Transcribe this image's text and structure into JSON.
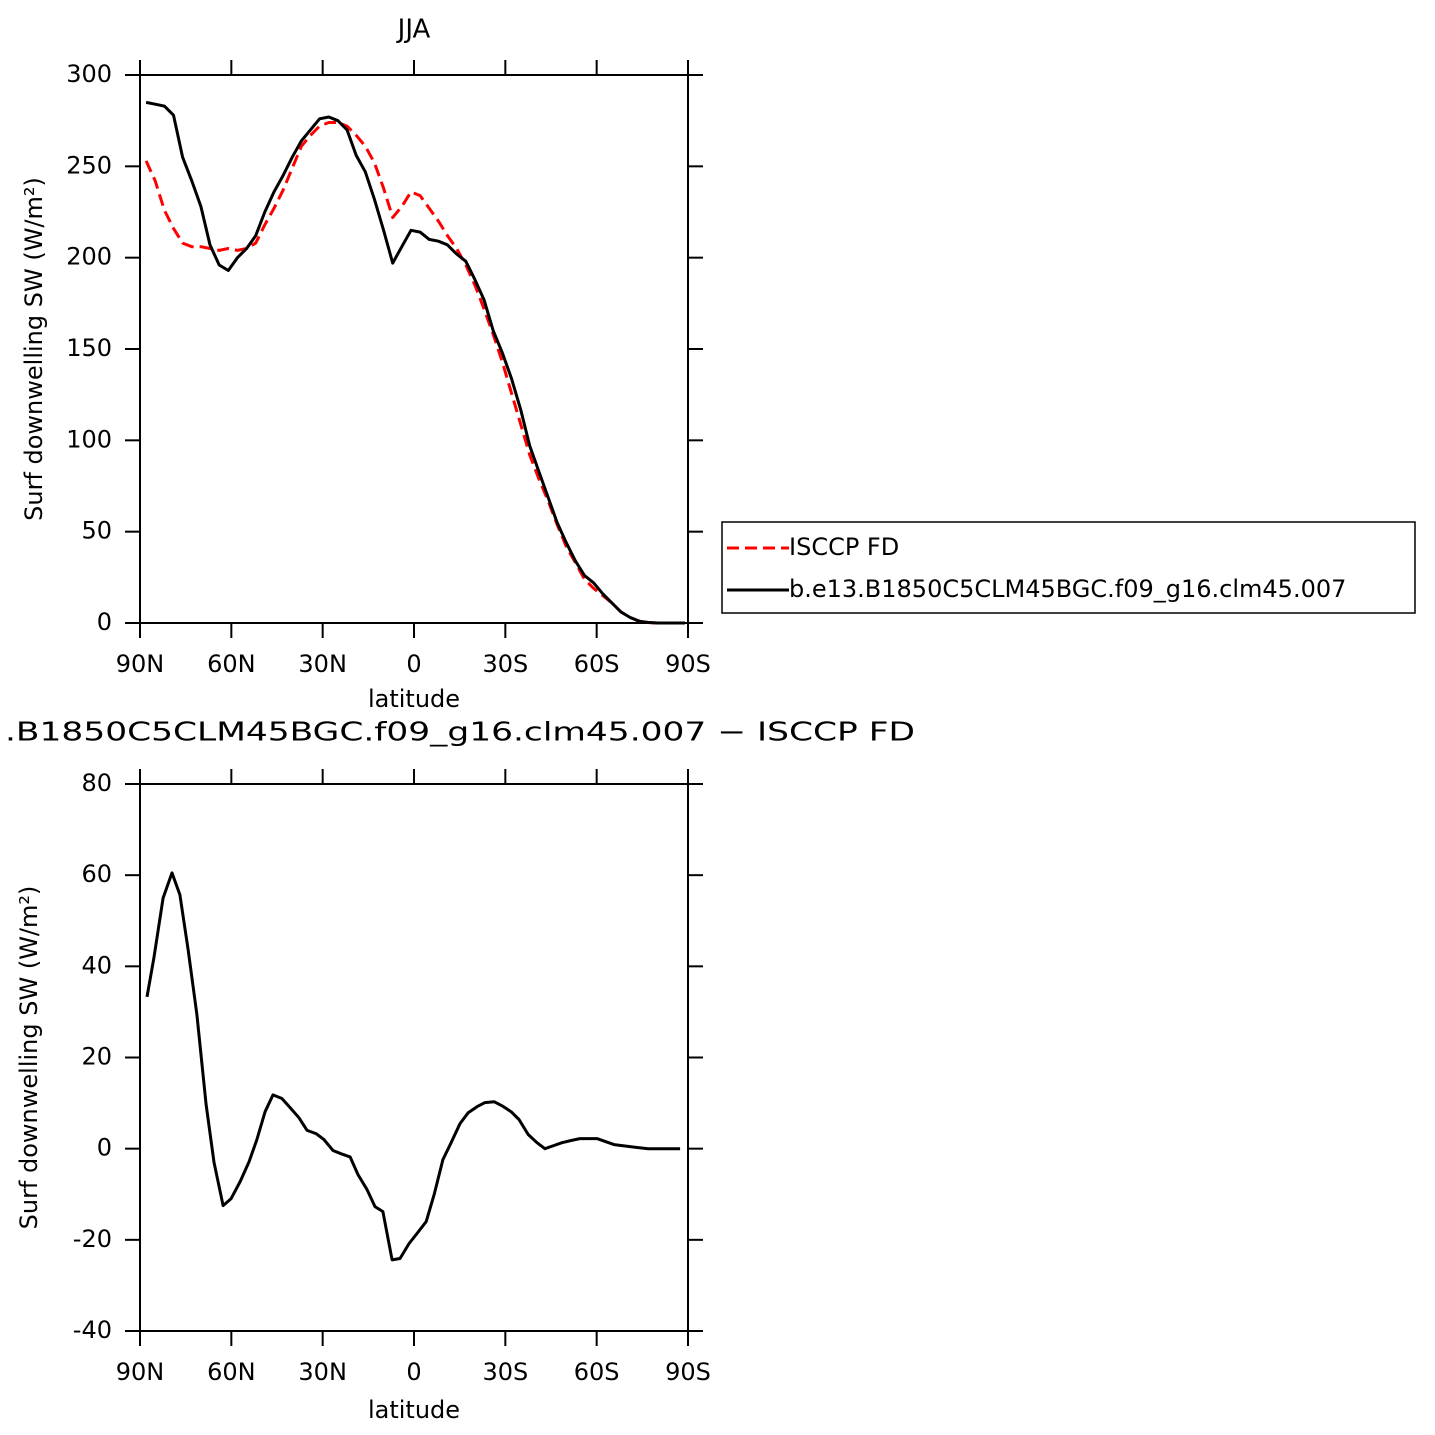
{
  "chart_data": [
    {
      "type": "line",
      "title": "JJA",
      "xlabel": "latitude",
      "ylabel": "Surf downwelling SW (W/m²)",
      "x": [
        88,
        85,
        82,
        79,
        76,
        73,
        70,
        67,
        64,
        61,
        58,
        55,
        52,
        49,
        46,
        43,
        40,
        37,
        34,
        31,
        28,
        25,
        22,
        19,
        16,
        13,
        10,
        7,
        4,
        1,
        -2,
        -5,
        -8,
        -11,
        -14,
        -17,
        -20,
        -23,
        -26,
        -29,
        -32,
        -35,
        -38,
        -41,
        -44,
        -47,
        -50,
        -53,
        -56,
        -59,
        -62,
        -65,
        -68,
        -71,
        -74,
        -77,
        -80,
        -83,
        -86,
        -89
      ],
      "series": [
        {
          "name": "ISCCP FD",
          "color": "#ff0000",
          "style": "dashed",
          "values": [
            253,
            242,
            226,
            216,
            208,
            206,
            206,
            205,
            204,
            205,
            204,
            205,
            208,
            218,
            227,
            237,
            249,
            261,
            267,
            272,
            274,
            274,
            272,
            267,
            261,
            252,
            238,
            222,
            228,
            236,
            234,
            227,
            220,
            212,
            205,
            196,
            185,
            172,
            158,
            143,
            126,
            109,
            92,
            79,
            67,
            54,
            42,
            33,
            24,
            19,
            15,
            11,
            6,
            3,
            1,
            0.3,
            0,
            0,
            0,
            0
          ]
        },
        {
          "name": "b.e13.B1850C5CLM45BGC.f09_g16.clm45.007",
          "color": "#000000",
          "style": "solid",
          "values": [
            285,
            284,
            283,
            278,
            255,
            242,
            228,
            207,
            196,
            193,
            200,
            205,
            212,
            225,
            236,
            245,
            255,
            264,
            270,
            276,
            277,
            275,
            270,
            256,
            247,
            232,
            215,
            197,
            206,
            215,
            214,
            210,
            209,
            207,
            202,
            198,
            188,
            177,
            160,
            148,
            134,
            117,
            97,
            83,
            69,
            55,
            44,
            34,
            26,
            22,
            16,
            11,
            6,
            3,
            1,
            0.3,
            0,
            0,
            0,
            0
          ]
        }
      ],
      "xlim": [
        90,
        -90
      ],
      "xticks": [
        {
          "value": 90,
          "label": "90N"
        },
        {
          "value": 60,
          "label": "60N"
        },
        {
          "value": 30,
          "label": "30N"
        },
        0,
        {
          "value": -30,
          "label": "30S"
        },
        {
          "value": -60,
          "label": "60S"
        },
        {
          "value": -90,
          "label": "90S"
        }
      ],
      "ylim": [
        0,
        300
      ],
      "yticks": [
        0,
        50,
        100,
        150,
        200,
        250,
        300
      ],
      "legend": "right"
    },
    {
      "type": "line",
      "title": ".B1850C5CLM45BGC.f09_g16.clm45.007 − ISCCP FD",
      "xlabel": "latitude",
      "ylabel": "Surf downwelling SW (W/m²)",
      "x": [
        87.7,
        85.4,
        82.4,
        79.5,
        76.9,
        74.2,
        71.3,
        68.3,
        65.7,
        62.7,
        60.1,
        57.1,
        54.2,
        51.6,
        48.9,
        46.3,
        43.4,
        40.7,
        37.8,
        35.1,
        32.2,
        29.6,
        26.6,
        24,
        21,
        18.4,
        15.4,
        12.8,
        10.2,
        7.2,
        4.6,
        1.6,
        -1,
        -4,
        -6.6,
        -9.5,
        -12.2,
        -15.1,
        -17.8,
        -20.7,
        -23.3,
        -26.3,
        -28.9,
        -31.9,
        -34.5,
        -37.5,
        -40.4,
        -43,
        -46,
        -48.6,
        -51.6,
        -54.5,
        -60.1,
        -65.7,
        -71.3,
        -76.9,
        -82.4,
        -87.4
      ],
      "values": [
        33.3,
        42,
        55,
        60.5,
        55.7,
        43.7,
        29.4,
        9.7,
        -3,
        -12.5,
        -11,
        -7.2,
        -2.9,
        2,
        8.1,
        11.8,
        11,
        9,
        6.8,
        4,
        3.3,
        2,
        -0.4,
        -1.1,
        -1.8,
        -5.7,
        -9,
        -12.7,
        -13.8,
        -24.4,
        -24.1,
        -20.8,
        -18.6,
        -16,
        -10.1,
        -2.4,
        1.3,
        5.5,
        7.9,
        9.2,
        10.1,
        10.3,
        9.4,
        8.1,
        6.4,
        3.1,
        1.3,
        0,
        0.7,
        1.3,
        1.8,
        2.2,
        2.2,
        0.9,
        0.4,
        0,
        0,
        0
      ],
      "color": "#000000",
      "xlim": [
        90,
        -90
      ],
      "xticks": [
        {
          "value": 90,
          "label": "90N"
        },
        {
          "value": 60,
          "label": "60N"
        },
        {
          "value": 30,
          "label": "30N"
        },
        0,
        {
          "value": -30,
          "label": "30S"
        },
        {
          "value": -60,
          "label": "60S"
        },
        {
          "value": -90,
          "label": "90S"
        }
      ],
      "ylim": [
        -40,
        80
      ],
      "yticks": [
        -40,
        -20,
        0,
        20,
        40,
        60,
        80
      ]
    }
  ]
}
